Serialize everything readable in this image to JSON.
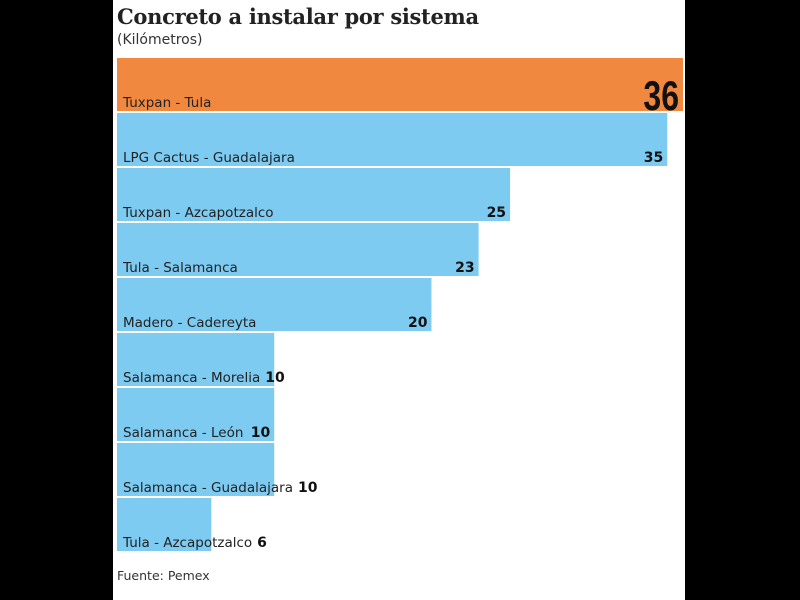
{
  "chart_data": {
    "type": "bar",
    "orientation": "horizontal",
    "title": "Concreto a instalar por sistema",
    "subtitle": "(Kilómetros)",
    "source": "Fuente: Pemex",
    "categories": [
      "Tuxpan - Tula",
      "LPG Cactus - Guadalajara",
      "Tuxpan - Azcapotzalco",
      "Tula - Salamanca",
      "Madero - Cadereyta",
      "Salamanca - Morelia",
      "Salamanca - León",
      "Salamanca - Guadalajara",
      "Tula - Azcapotzalco"
    ],
    "values": [
      36,
      35,
      25,
      23,
      20,
      10,
      10,
      10,
      6
    ],
    "value_labels": [
      "36",
      "35",
      "25",
      "23",
      "20",
      "10",
      "10",
      "10",
      "6"
    ],
    "highlight_index": 0,
    "colors": {
      "highlight": "#f0883f",
      "bar": "#7ecbf2",
      "text": "#222222"
    },
    "xlim": [
      0,
      36
    ],
    "grid": false
  }
}
